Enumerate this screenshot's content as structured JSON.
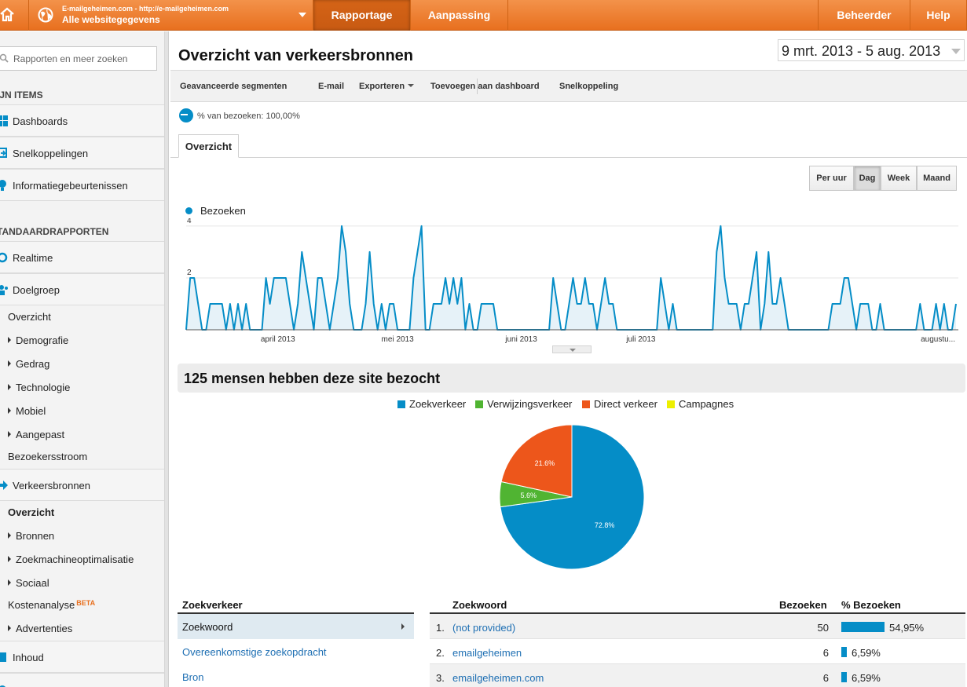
{
  "topbar": {
    "account_url": "E-mailgeheimen.com - http://e-mailgeheimen.com",
    "account_property": "Alle websitegegevens",
    "tabs": [
      {
        "label": "Rapportage",
        "active": true
      },
      {
        "label": "Aanpassing",
        "active": false
      }
    ],
    "admin_label": "Beheerder",
    "help_label": "Help",
    "brand_color": "#e8701f"
  },
  "sidebar": {
    "search_placeholder": "Rapporten en meer zoeken",
    "my_items_heading": "IJN ITEMS",
    "my_items": [
      "Dashboards",
      "Snelkoppelingen",
      "Informatiegebeurtenissen"
    ],
    "standard_heading": "TANDAARDRAPPORTEN",
    "realtime": "Realtime",
    "audience": "Doelgroep",
    "audience_sub": [
      "Overzicht",
      "Demografie",
      "Gedrag",
      "Technologie",
      "Mobiel",
      "Aangepast"
    ],
    "visitor_flow": "Bezoekersstroom",
    "traffic": "Verkeersbronnen",
    "traffic_sub": [
      "Overzicht",
      "Bronnen",
      "Zoekmachineoptimalisatie",
      "Sociaal"
    ],
    "cost_analysis": "Kostenanalyse",
    "beta": "BETA",
    "ads": "Advertenties",
    "content": "Inhoud"
  },
  "main": {
    "title": "Overzicht van verkeersbronnen",
    "date_range": "9 mrt. 2013 - 5 aug. 2013",
    "toolbar": {
      "segments": "Geavanceerde segmenten",
      "email": "E-mail",
      "export": "Exporteren",
      "add_dashboard": "Toevoegen aan dashboard",
      "shortcut": "Snelkoppeling"
    },
    "segment_text": "% van bezoeken: 100,00%",
    "tab_overview": "Overzicht",
    "granularity": [
      "Per uur",
      "Dag",
      "Week",
      "Maand"
    ],
    "granularity_selected": "Dag",
    "summary": "125 mensen hebben deze site bezocht"
  },
  "chart_data": [
    {
      "type": "line",
      "series": [
        {
          "name": "Bezoeken",
          "color": "#058dc7",
          "values": [
            0,
            2,
            2,
            1,
            0,
            0,
            1,
            1,
            1,
            1,
            0,
            1,
            0,
            1,
            0,
            1,
            0,
            0,
            0,
            0,
            2,
            1,
            2,
            2,
            2,
            2,
            1,
            0,
            1,
            3,
            2,
            1,
            0,
            2,
            2,
            1,
            0,
            1,
            2,
            4,
            3,
            1,
            0,
            0,
            0,
            1,
            3,
            1,
            0,
            1,
            0,
            1,
            1,
            0,
            0,
            0,
            0,
            2,
            3,
            4,
            0,
            0,
            1,
            1,
            1,
            2,
            1,
            2,
            1,
            2,
            0,
            1,
            0,
            0,
            1,
            1,
            1,
            1,
            0,
            0,
            0,
            0,
            0,
            0,
            0,
            0,
            0,
            0,
            0,
            0,
            0,
            0,
            2,
            1,
            0,
            0,
            1,
            2,
            1,
            1,
            2,
            1,
            1,
            0,
            1,
            2,
            1,
            1,
            0,
            0,
            0,
            0,
            0,
            0,
            0,
            0,
            0,
            0,
            0,
            2,
            1,
            0,
            1,
            0,
            0,
            0,
            0,
            0,
            0,
            0,
            0,
            0,
            0,
            3,
            4,
            2,
            1,
            1,
            1,
            0,
            1,
            1,
            2,
            3,
            0,
            1,
            3,
            1,
            1,
            2,
            1,
            0,
            0,
            0,
            0,
            0,
            0,
            0,
            0,
            0,
            0,
            0,
            1,
            1,
            1,
            2,
            2,
            1,
            0,
            1,
            1,
            1,
            0,
            0,
            1,
            0,
            0,
            0,
            0,
            0,
            0,
            0,
            0,
            0,
            1,
            0,
            0,
            0,
            1,
            0,
            1,
            0,
            0,
            1
          ]
        }
      ],
      "x_tick_labels": [
        "april 2013",
        "mei 2013",
        "juni 2013",
        "juli 2013",
        "augustu..."
      ],
      "y_tick_labels": [
        "2",
        "4"
      ],
      "ylim": [
        0,
        4.3
      ],
      "grid": true
    },
    {
      "type": "pie",
      "legend": [
        "Zoekverkeer",
        "Verwijzingsverkeer",
        "Direct verkeer",
        "Campagnes"
      ],
      "legend_colors": [
        "#058dc7",
        "#50b432",
        "#ed561b",
        "#edef00"
      ],
      "slices": [
        {
          "label": "Zoekverkeer",
          "value": 72.8,
          "text": "72.8%",
          "color": "#058dc7"
        },
        {
          "label": "Verwijzingsverkeer",
          "value": 5.6,
          "text": "5.6%",
          "color": "#50b432"
        },
        {
          "label": "Direct verkeer",
          "value": 21.6,
          "text": "21.6%",
          "color": "#ed561b"
        }
      ]
    }
  ],
  "search_traffic": {
    "heading": "Zoekverkeer",
    "rows": [
      {
        "label": "Zoekwoord",
        "selected": true
      },
      {
        "label": "Overeenkomstige zoekopdracht",
        "selected": false
      },
      {
        "label": "Bron",
        "selected": false
      }
    ]
  },
  "keywords": {
    "col_keyword": "Zoekwoord",
    "col_visits": "Bezoeken",
    "col_pct": "% Bezoeken",
    "rows": [
      {
        "num": "1.",
        "keyword": "(not provided)",
        "visits": "50",
        "pct": "54,95%",
        "fraction": 0.5495
      },
      {
        "num": "2.",
        "keyword": "emailgeheimen",
        "visits": "6",
        "pct": "6,59%",
        "fraction": 0.0659
      },
      {
        "num": "3.",
        "keyword": "emailgeheimen.com",
        "visits": "6",
        "pct": "6,59%",
        "fraction": 0.0659
      }
    ]
  }
}
